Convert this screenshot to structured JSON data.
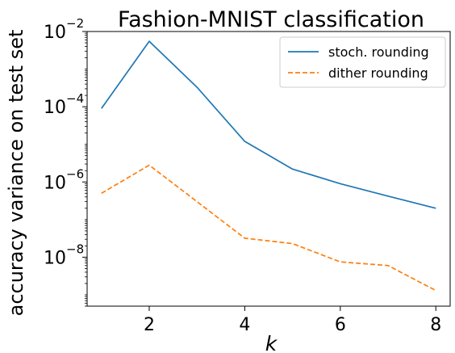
{
  "chart_data": {
    "type": "line",
    "title": "Fashion-MNIST classification",
    "xlabel": "k",
    "ylabel": "accuracy variance on test set",
    "xscale": "linear",
    "yscale": "log",
    "xlim": [
      0.7,
      8.3
    ],
    "ylim": [
      5e-10,
      0.01
    ],
    "xticks": [
      2,
      4,
      6,
      8
    ],
    "yticks": [
      {
        "value": 0.01,
        "base": "10",
        "exp": "−2"
      },
      {
        "value": 0.0001,
        "base": "10",
        "exp": "−4"
      },
      {
        "value": 1e-06,
        "base": "10",
        "exp": "−6"
      },
      {
        "value": 1e-08,
        "base": "10",
        "exp": "−8"
      }
    ],
    "x": [
      1,
      2,
      3,
      4,
      5,
      6,
      7,
      8
    ],
    "series": [
      {
        "name": "stoch. rounding",
        "color": "#1f77b4",
        "dash": "solid",
        "values": [
          9e-05,
          0.0055,
          0.00033,
          1.2e-05,
          2.2e-06,
          9e-07,
          4.2e-07,
          2e-07
        ]
      },
      {
        "name": "dither rounding",
        "color": "#ff7f0e",
        "dash": "dashed",
        "values": [
          5e-07,
          2.8e-06,
          3e-07,
          3.2e-08,
          2.3e-08,
          7.5e-09,
          6e-09,
          1.3e-09
        ]
      }
    ],
    "grid": false,
    "legend_position": "top-right"
  }
}
